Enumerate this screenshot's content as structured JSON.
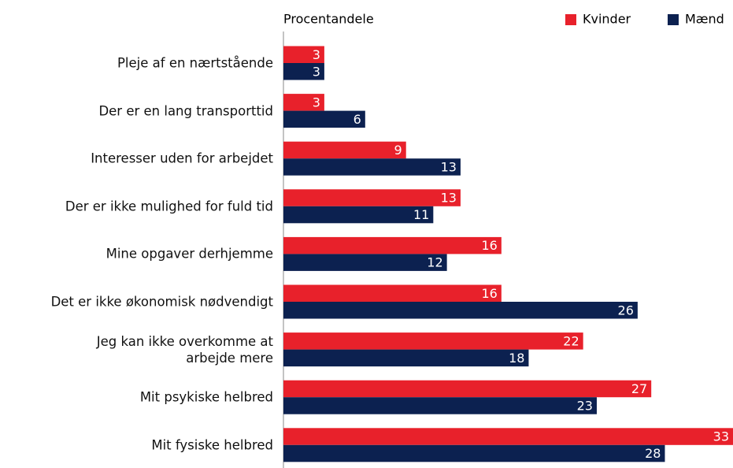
{
  "chart_data": {
    "type": "bar",
    "orientation": "horizontal",
    "title": "Procentandele",
    "categories": [
      "Pleje af en nærtstående",
      "Der er en lang transporttid",
      "Interesser uden for arbejdet",
      "Der er ikke mulighed for fuld tid",
      "Mine opgaver derhjemme",
      "Det er ikke økonomisk nødvendigt",
      "Jeg kan ikke overkomme at\narbejde mere",
      "Mit psykiske helbred",
      "Mit fysiske helbred"
    ],
    "series": [
      {
        "name": "Kvinder",
        "color": "#e8212b",
        "values": [
          3,
          3,
          9,
          13,
          16,
          16,
          22,
          27,
          33
        ]
      },
      {
        "name": "Mænd",
        "color": "#0c2150",
        "values": [
          3,
          6,
          13,
          11,
          12,
          26,
          18,
          23,
          28
        ]
      }
    ],
    "xlim": [
      0,
      33
    ]
  }
}
